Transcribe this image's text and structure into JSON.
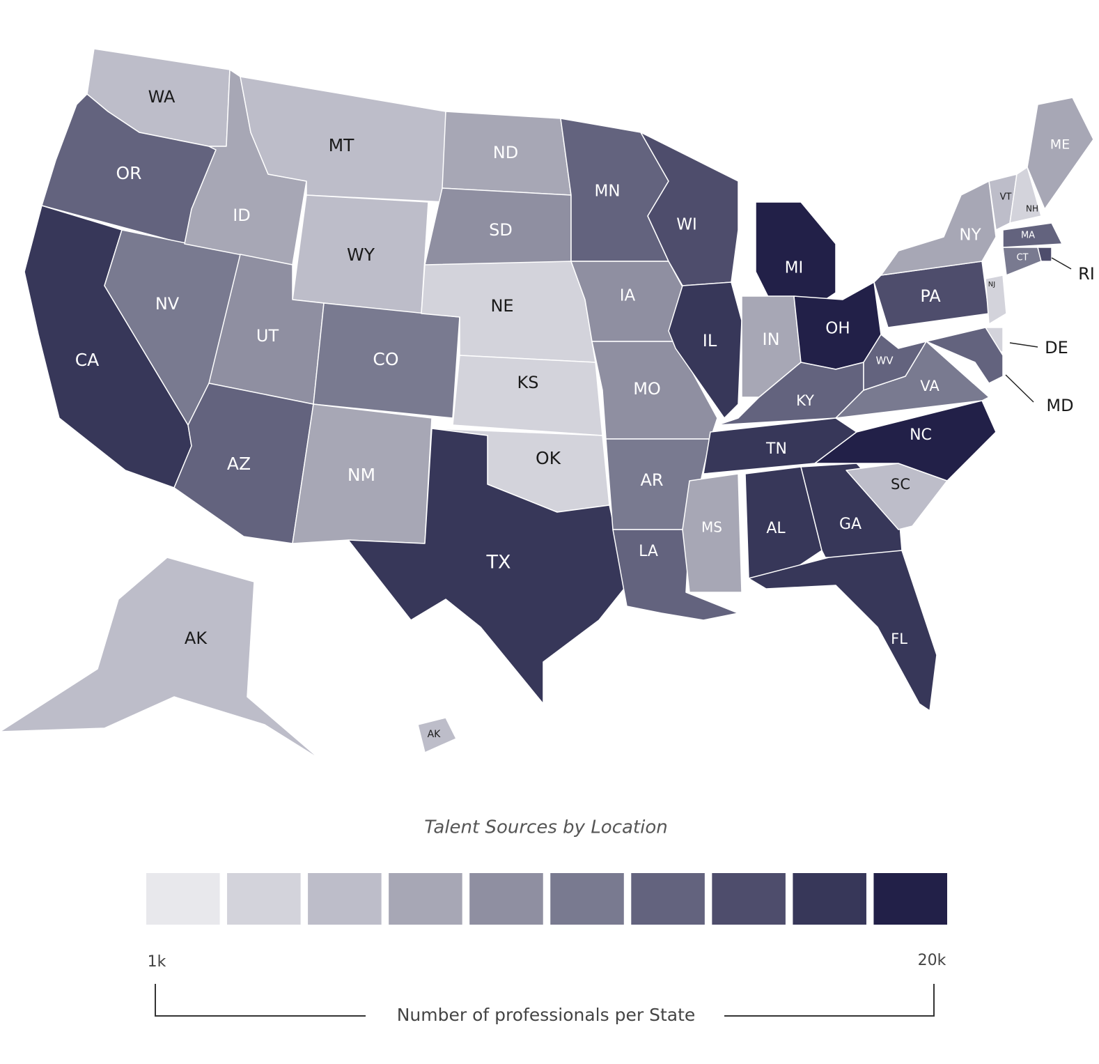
{
  "map": {
    "title": "Talent Sources by Location",
    "legend": {
      "colors": [
        "#e8e8ec",
        "#d3d3db",
        "#bdbdc9",
        "#a7a7b5",
        "#8f8fa1",
        "#797a90",
        "#63637e",
        "#4e4d6c",
        "#373759",
        "#222048"
      ],
      "min_label": "1k",
      "max_label": "20k",
      "caption": "Number of professionals per State"
    },
    "states": [
      {
        "label": "WA",
        "color": "#bdbdc9"
      },
      {
        "label": "OR",
        "color": "#63637e"
      },
      {
        "label": "CA",
        "color": "#373759"
      },
      {
        "label": "NV",
        "color": "#797a90"
      },
      {
        "label": "ID",
        "color": "#a7a7b5"
      },
      {
        "label": "MT",
        "color": "#bdbdc9"
      },
      {
        "label": "WY",
        "color": "#bdbdc9"
      },
      {
        "label": "UT",
        "color": "#8f8fa1"
      },
      {
        "label": "CO",
        "color": "#797a90"
      },
      {
        "label": "AZ",
        "color": "#63637e"
      },
      {
        "label": "NM",
        "color": "#a7a7b5"
      },
      {
        "label": "ND",
        "color": "#a7a7b5"
      },
      {
        "label": "SD",
        "color": "#8f8fa1"
      },
      {
        "label": "NE",
        "color": "#d3d3db"
      },
      {
        "label": "KS",
        "color": "#d3d3db"
      },
      {
        "label": "OK",
        "color": "#d3d3db"
      },
      {
        "label": "TX",
        "color": "#373759"
      },
      {
        "label": "MN",
        "color": "#63637e"
      },
      {
        "label": "IA",
        "color": "#8f8fa1"
      },
      {
        "label": "MO",
        "color": "#8f8fa1"
      },
      {
        "label": "AR",
        "color": "#797a90"
      },
      {
        "label": "LA",
        "color": "#63637e"
      },
      {
        "label": "MS",
        "color": "#a7a7b5"
      },
      {
        "label": "WI",
        "color": "#4e4d6c"
      },
      {
        "label": "IL",
        "color": "#373759"
      },
      {
        "label": "MI",
        "color": "#222048"
      },
      {
        "label": "IN",
        "color": "#a7a7b5"
      },
      {
        "label": "OH",
        "color": "#222048"
      },
      {
        "label": "KY",
        "color": "#63637e"
      },
      {
        "label": "TN",
        "color": "#373759"
      },
      {
        "label": "AL",
        "color": "#373759"
      },
      {
        "label": "GA",
        "color": "#373759"
      },
      {
        "label": "FL",
        "color": "#373759"
      },
      {
        "label": "SC",
        "color": "#bdbdc9"
      },
      {
        "label": "NC",
        "color": "#222048"
      },
      {
        "label": "VA",
        "color": "#797a90"
      },
      {
        "label": "WV",
        "color": "#63637e"
      },
      {
        "label": "PA",
        "color": "#4e4d6c"
      },
      {
        "label": "NY",
        "color": "#a7a7b5"
      },
      {
        "label": "VT",
        "color": "#bdbdc9"
      },
      {
        "label": "NH",
        "color": "#d3d3db"
      },
      {
        "label": "ME",
        "color": "#a7a7b5"
      },
      {
        "label": "MA",
        "color": "#63637e"
      },
      {
        "label": "CT",
        "color": "#797a90"
      },
      {
        "label": "RI",
        "color": "#4e4d6c"
      },
      {
        "label": "NJ",
        "color": "#d3d3db"
      },
      {
        "label": "DE",
        "color": "#d3d3db"
      },
      {
        "label": "MD",
        "color": "#63637e"
      },
      {
        "label": "AK",
        "color": "#bdbdc9"
      },
      {
        "label": "AK",
        "color": "#bdbdc9"
      }
    ]
  }
}
